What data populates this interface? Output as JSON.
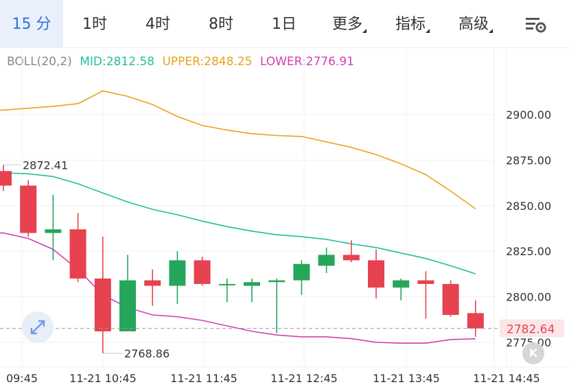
{
  "tabs": [
    {
      "label": "15 分",
      "active": true
    },
    {
      "label": "1时",
      "active": false
    },
    {
      "label": "4时",
      "active": false
    },
    {
      "label": "8时",
      "active": false
    },
    {
      "label": "1日",
      "active": false
    },
    {
      "label": "更多",
      "active": false,
      "dropdown": true
    },
    {
      "label": "指标",
      "active": false,
      "dropdown": true
    },
    {
      "label": "高级",
      "active": false,
      "dropdown": true
    }
  ],
  "indicator": {
    "name": "BOLL(20,2)",
    "mid": "MID:2812.58",
    "upper": "UPPER:2848.25",
    "lower": "LOWER:2776.91"
  },
  "colors": {
    "up": "#26a65b",
    "down": "#e6424f",
    "mid": "#1fbf9a",
    "upper": "#e8a21a",
    "lower": "#d33fb3",
    "accent": "#2a72e0"
  },
  "icons": {
    "settings": "chart-settings-icon",
    "zoom": "expand-arrows-icon",
    "k": "k-line-icon"
  },
  "k_button_label": "K",
  "chart_data": {
    "type": "candlestick",
    "y_ticks": [
      "2900.00",
      "2875.00",
      "2850.00",
      "2825.00",
      "2800.00",
      "2775.00"
    ],
    "x_ticks": [
      "09:45",
      "11-21 10:45",
      "11-21 11:45",
      "11-21 12:45",
      "11-21 13:45",
      "11-21 14:45"
    ],
    "ylim": [
      2767,
      2922
    ],
    "grid": true,
    "current_price": "2782.64",
    "annotations": {
      "high": "2872.41",
      "low": "2768.86"
    },
    "candles": [
      {
        "o": 2869,
        "h": 2872.4,
        "l": 2858,
        "c": 2861
      },
      {
        "o": 2861,
        "h": 2864,
        "l": 2833,
        "c": 2835
      },
      {
        "o": 2835,
        "h": 2856,
        "l": 2820,
        "c": 2837
      },
      {
        "o": 2837,
        "h": 2846,
        "l": 2808,
        "c": 2810
      },
      {
        "o": 2810,
        "h": 2833,
        "l": 2768.9,
        "c": 2781
      },
      {
        "o": 2781,
        "h": 2823,
        "l": 2781,
        "c": 2809
      },
      {
        "o": 2809,
        "h": 2815,
        "l": 2795,
        "c": 2806
      },
      {
        "o": 2806,
        "h": 2825,
        "l": 2796,
        "c": 2820
      },
      {
        "o": 2820,
        "h": 2822,
        "l": 2806,
        "c": 2807
      },
      {
        "o": 2807,
        "h": 2810,
        "l": 2797,
        "c": 2807
      },
      {
        "o": 2806,
        "h": 2810,
        "l": 2797,
        "c": 2808
      },
      {
        "o": 2808,
        "h": 2810,
        "l": 2780,
        "c": 2809
      },
      {
        "o": 2809,
        "h": 2820,
        "l": 2801,
        "c": 2818
      },
      {
        "o": 2817,
        "h": 2827,
        "l": 2813,
        "c": 2823
      },
      {
        "o": 2823,
        "h": 2831,
        "l": 2819,
        "c": 2820
      },
      {
        "o": 2820,
        "h": 2826,
        "l": 2799,
        "c": 2805
      },
      {
        "o": 2805,
        "h": 2810,
        "l": 2798,
        "c": 2809
      },
      {
        "o": 2809,
        "h": 2814,
        "l": 2788,
        "c": 2807
      },
      {
        "o": 2807,
        "h": 2809,
        "l": 2789,
        "c": 2790
      },
      {
        "o": 2791,
        "h": 2798,
        "l": 2778,
        "c": 2782.6
      }
    ],
    "series": [
      {
        "name": "UPPER",
        "values": [
          2902.5,
          2903.5,
          2904.5,
          2906,
          2913,
          2910,
          2905.5,
          2899,
          2894,
          2891.5,
          2889.5,
          2888.5,
          2888,
          2885,
          2882,
          2878,
          2873,
          2867,
          2858,
          2848.25
        ]
      },
      {
        "name": "MID",
        "values": [
          2868,
          2867.5,
          2866,
          2862,
          2857,
          2852,
          2848,
          2845,
          2841.5,
          2838.5,
          2836,
          2834,
          2833,
          2831.5,
          2829,
          2827,
          2824,
          2821,
          2817,
          2812.58
        ]
      },
      {
        "name": "LOWER",
        "values": [
          2835,
          2832,
          2826,
          2815,
          2801,
          2794,
          2790,
          2789,
          2787,
          2784,
          2781,
          2779,
          2778,
          2778,
          2777,
          2775,
          2774.5,
          2774.5,
          2776.5,
          2776.91
        ]
      }
    ]
  }
}
